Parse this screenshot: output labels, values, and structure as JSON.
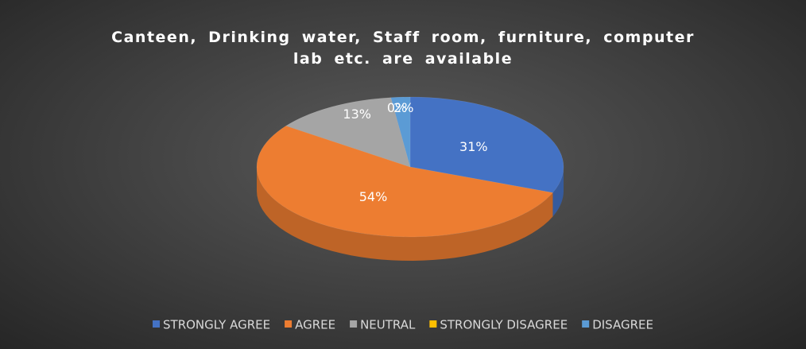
{
  "chart_data": {
    "type": "pie",
    "title": "Canteen, Drinking water, Staff room, furniture, computer lab etc. are available",
    "categories": [
      "STRONGLY AGREE",
      "AGREE",
      "NEUTRAL",
      "STRONGLY DISAGREE",
      "DISAGREE"
    ],
    "values": [
      31,
      54,
      13,
      0,
      2
    ],
    "value_labels": [
      "31%",
      "54%",
      "13%",
      "0%",
      "2%"
    ],
    "colors": [
      "#4472c4",
      "#ed7d31",
      "#a5a5a5",
      "#ffc000",
      "#5b9bd5"
    ],
    "legend": "bottom"
  }
}
